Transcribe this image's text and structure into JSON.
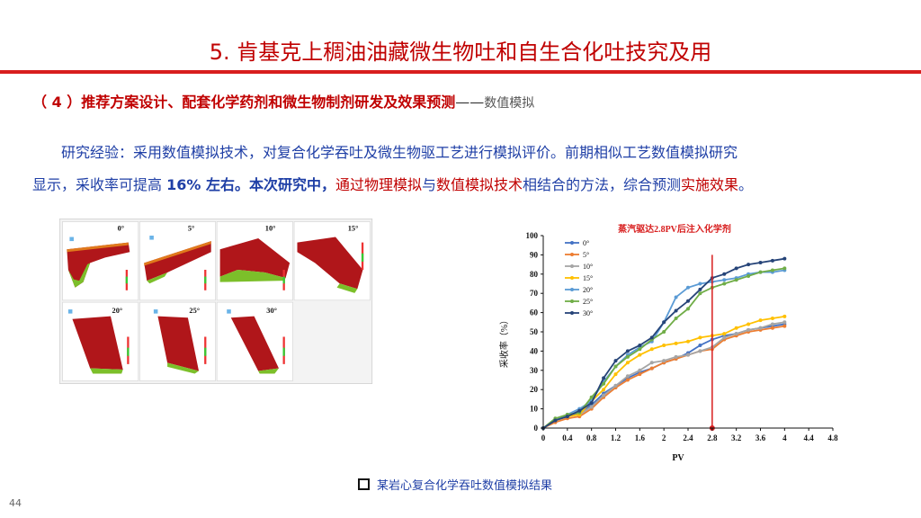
{
  "slide": {
    "title": "5. 肯基克上稠油油藏微生物吐和自生合化吐技究及用",
    "subheading": {
      "label": "（ 4 ）推荐方案设计、配套化学药剂和微生物制剂研发及效果预测",
      "dash": "——",
      "tail": "数值模拟"
    },
    "paragraph": {
      "p1": "研究经验：采用数值模拟技术，对复合化学吞吐及微生物驱工艺进行模拟评价。前期相似工艺数值模拟研究",
      "p2a": "显示，采收率可提高 ",
      "p2b": "16% 左右。本次研究中，",
      "p2c": "通过物理模拟",
      "p2d": "与",
      "p2e": "数值模拟技术",
      "p2f": "相结合的方法，综合预测",
      "p2g": "实施效果",
      "p2h": "。"
    },
    "sim_angles": [
      "0°",
      "5°",
      "10°",
      "15°",
      "20°",
      "25°",
      "30°"
    ],
    "caption": "某岩心复合化学吞吐数值模拟结果",
    "page_number": "44"
  },
  "chart_data": {
    "type": "line",
    "title": "蒸汽驱达2.8PV后注入化学剂",
    "xlabel": "PV",
    "ylabel": "采收率（%）",
    "xlim": [
      0,
      4.8
    ],
    "ylim": [
      0,
      100
    ],
    "xticks": [
      "0",
      "0.4",
      "0.8",
      "1.2",
      "1.6",
      "2",
      "2.4",
      "2.8",
      "3.2",
      "3.6",
      "4",
      "4.4",
      "4.8"
    ],
    "yticks": [
      "0",
      "10",
      "20",
      "30",
      "40",
      "50",
      "60",
      "70",
      "80",
      "90",
      "100"
    ],
    "marker_line_x": 2.8,
    "marker_color": "#d81e1e",
    "legend_position": "top-left",
    "x": [
      0,
      0.2,
      0.4,
      0.6,
      0.8,
      1.0,
      1.2,
      1.4,
      1.6,
      1.8,
      2.0,
      2.2,
      2.4,
      2.6,
      2.8,
      3.0,
      3.2,
      3.4,
      3.6,
      3.8,
      4.0
    ],
    "series": [
      {
        "name": "0°",
        "color": "#4472c4",
        "values": [
          0,
          4,
          6,
          8,
          12,
          18,
          22,
          26,
          29,
          31,
          34,
          36,
          39,
          43,
          46,
          48,
          49,
          51,
          52,
          53,
          54
        ]
      },
      {
        "name": "5°",
        "color": "#ed7d31",
        "values": [
          0,
          3,
          5,
          6,
          10,
          16,
          21,
          25,
          28,
          31,
          34,
          36,
          38,
          40,
          41,
          46,
          48,
          50,
          51,
          52,
          53
        ]
      },
      {
        "name": "10°",
        "color": "#a5a5a5",
        "values": [
          0,
          4,
          6,
          7,
          11,
          17,
          22,
          27,
          30,
          34,
          35,
          37,
          38,
          40,
          42,
          47,
          49,
          51,
          52,
          54,
          55
        ]
      },
      {
        "name": "15°",
        "color": "#ffc000",
        "values": [
          0,
          4,
          6,
          7,
          14,
          20,
          28,
          34,
          38,
          41,
          43,
          44,
          45,
          47,
          48,
          49,
          52,
          54,
          56,
          57,
          58
        ]
      },
      {
        "name": "20°",
        "color": "#5b9bd5",
        "values": [
          0,
          4,
          7,
          10,
          14,
          24,
          32,
          38,
          42,
          45,
          55,
          68,
          73,
          75,
          76,
          77,
          78,
          80,
          81,
          81,
          82
        ]
      },
      {
        "name": "25°",
        "color": "#70ad47",
        "values": [
          0,
          5,
          7,
          8,
          16,
          23,
          32,
          37,
          41,
          46,
          50,
          57,
          62,
          70,
          73,
          75,
          77,
          79,
          81,
          82,
          83
        ]
      },
      {
        "name": "30°",
        "color": "#264478",
        "values": [
          0,
          4,
          6,
          9,
          13,
          26,
          35,
          40,
          43,
          47,
          55,
          61,
          66,
          72,
          78,
          80,
          83,
          85,
          86,
          87,
          88
        ]
      }
    ]
  }
}
